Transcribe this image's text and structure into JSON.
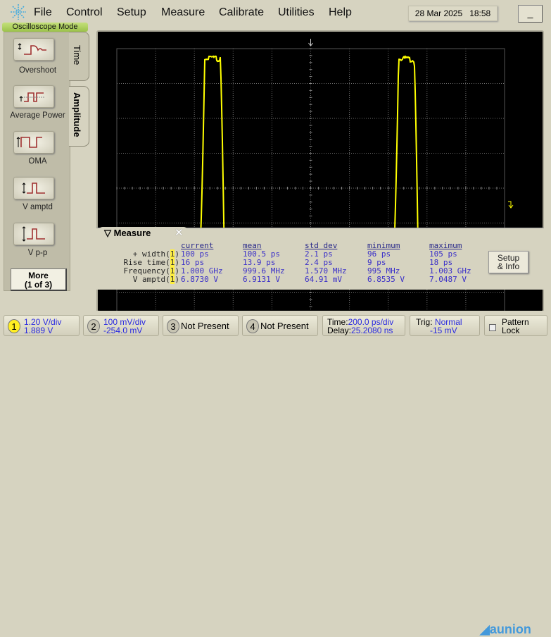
{
  "menu": {
    "items": [
      "File",
      "Control",
      "Setup",
      "Measure",
      "Calibrate",
      "Utilities",
      "Help"
    ],
    "date": "28 Mar 2025",
    "time": "18:58",
    "minimize": "_"
  },
  "mode_label": "Oscilloscope Mode",
  "left_panel": {
    "buttons": [
      {
        "label": "Overshoot",
        "icon": "overshoot-icon"
      },
      {
        "label": "Average Power",
        "icon": "average-power-icon"
      },
      {
        "label": "OMA",
        "icon": "oma-icon"
      },
      {
        "label": "V amptd",
        "icon": "v-amplitude-icon"
      },
      {
        "label": "V p-p",
        "icon": "v-peak-to-peak-icon"
      }
    ],
    "more_line1": "More",
    "more_line2": "(1 of 3)",
    "tabs": [
      "Time",
      "Amplitude"
    ],
    "active_tab": "Amplitude"
  },
  "screen": {
    "trace_color": "#ffff00",
    "grid_color": "#6a6a6a",
    "period_ns": 1.0,
    "timebase_ps_per_div": 200,
    "vertical_V_per_div": 1.2
  },
  "measure": {
    "title": "Measure",
    "close": "✕",
    "headers": [
      "current",
      "mean",
      "std dev",
      "minimum",
      "maximum"
    ],
    "rows": [
      {
        "name": "+ width(",
        "ch": "1",
        "values": [
          "100 ps",
          "100.5 ps",
          "2.1 ps",
          "96 ps",
          "105 ps"
        ]
      },
      {
        "name": "Rise time(",
        "ch": "1",
        "values": [
          "16 ps",
          "13.9 ps",
          "2.4 ps",
          "9 ps",
          "18 ps"
        ]
      },
      {
        "name": "Frequency(",
        "ch": "1",
        "values": [
          "1.000 GHz",
          "999.6 MHz",
          "1.570 MHz",
          "995 MHz",
          "1.003 GHz"
        ]
      },
      {
        "name": "V amptd(",
        "ch": "1",
        "values": [
          "6.8730 V",
          "6.9131 V",
          "64.91 mV",
          "6.8535 V",
          "7.0487 V"
        ]
      }
    ],
    "setup_line1": "Setup",
    "setup_line2": "& Info"
  },
  "bottom": {
    "ch1": {
      "num": "1",
      "scale": "1.20 V/div",
      "offset": "1.889 V",
      "color": "#ffff00"
    },
    "ch2": {
      "num": "2",
      "scale": "100 mV/div",
      "offset": "-254.0 mV"
    },
    "ch3": {
      "num": "3",
      "status": "Not Present"
    },
    "ch4": {
      "num": "4",
      "status": "Not Present"
    },
    "time": {
      "label1": "Time:",
      "value1": "200.0 ps/div",
      "label2": "Delay:",
      "value2": "25.2080 ns"
    },
    "trig": {
      "label": "Trig:",
      "mode": "Normal",
      "level": "-15 mV"
    },
    "pattern": {
      "line1": "Pattern",
      "line2": "Lock"
    },
    "watermark": "aunion"
  }
}
